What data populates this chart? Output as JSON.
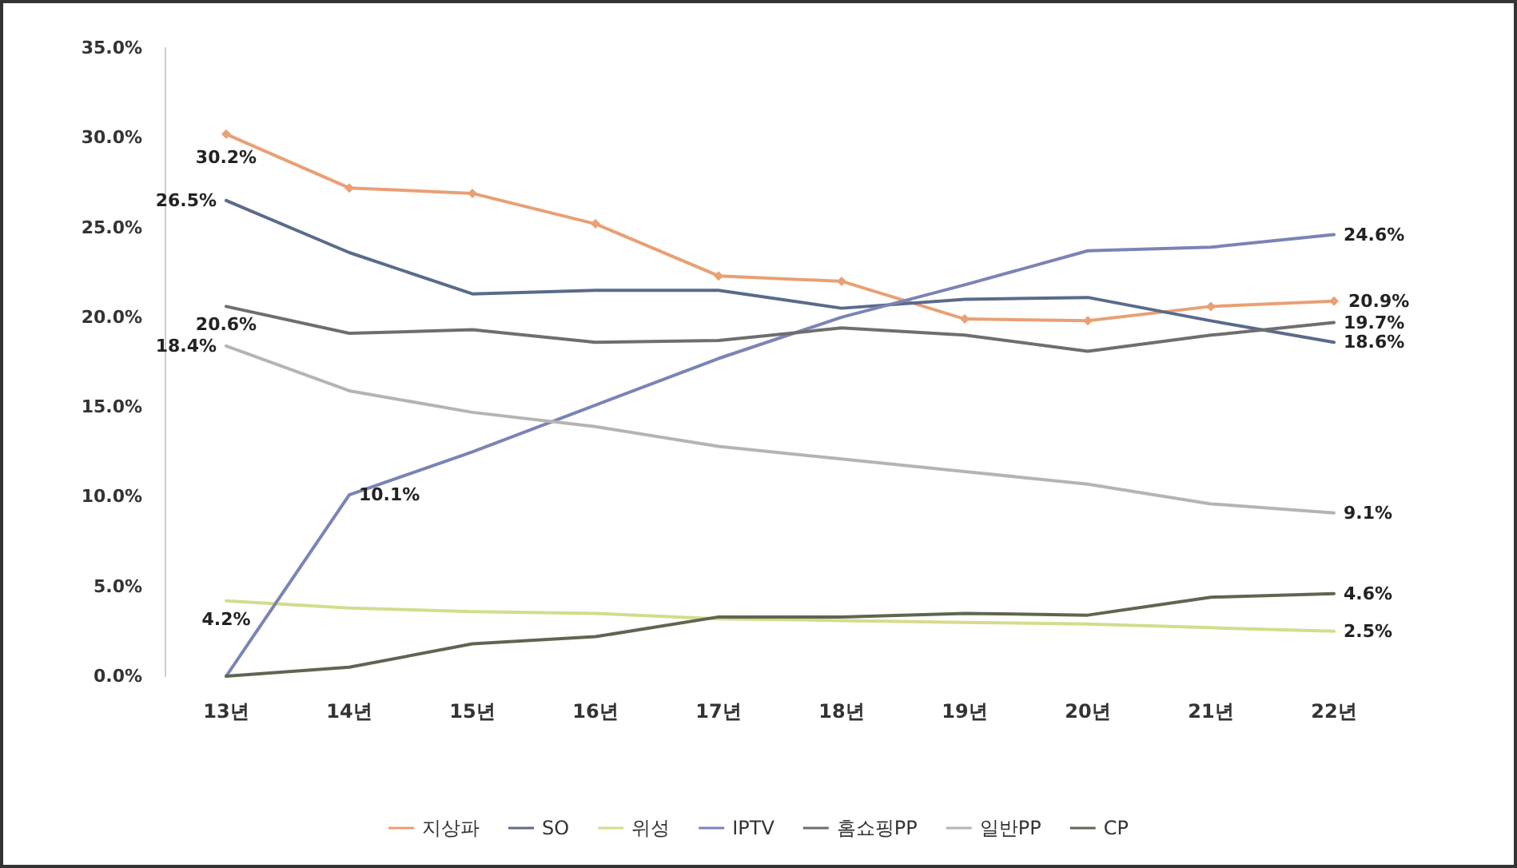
{
  "chart_data": {
    "type": "line",
    "categories": [
      "13년",
      "14년",
      "15년",
      "16년",
      "17년",
      "18년",
      "19년",
      "20년",
      "21년",
      "22년"
    ],
    "series": [
      {
        "name": "지상파",
        "color": "#e8a074",
        "marker": "diamond",
        "values": [
          30.2,
          27.2,
          26.9,
          25.2,
          22.3,
          22.0,
          19.9,
          19.8,
          20.6,
          20.9
        ],
        "value_labels": [
          "30.2%",
          null,
          null,
          null,
          null,
          null,
          null,
          null,
          null,
          "20.9%"
        ]
      },
      {
        "name": "SO",
        "color": "#5a6a8a",
        "values": [
          26.5,
          23.6,
          21.3,
          21.5,
          21.5,
          20.5,
          21.0,
          21.1,
          19.8,
          18.6
        ],
        "value_labels": [
          "26.5%",
          null,
          null,
          null,
          null,
          null,
          null,
          null,
          null,
          "18.6%"
        ]
      },
      {
        "name": "위성",
        "color": "#d4dc8c",
        "values": [
          4.2,
          3.8,
          3.6,
          3.5,
          3.2,
          3.1,
          3.0,
          2.9,
          2.7,
          2.5
        ],
        "value_labels": [
          "4.2%",
          null,
          null,
          null,
          null,
          null,
          null,
          null,
          null,
          "2.5%"
        ]
      },
      {
        "name": "IPTV",
        "color": "#7a84b4",
        "values": [
          0.0,
          10.1,
          12.5,
          15.1,
          17.7,
          20.0,
          21.8,
          23.7,
          23.9,
          24.6
        ],
        "value_labels": [
          null,
          "10.1%",
          null,
          null,
          null,
          null,
          null,
          null,
          null,
          "24.6%"
        ]
      },
      {
        "name": "홈쇼핑PP",
        "color": "#6e6e6e",
        "values": [
          20.6,
          19.1,
          19.3,
          18.6,
          18.7,
          19.4,
          19.0,
          18.1,
          19.0,
          19.7
        ],
        "value_labels": [
          "20.6%",
          null,
          null,
          null,
          null,
          null,
          null,
          null,
          null,
          "19.7%"
        ]
      },
      {
        "name": "일반PP",
        "color": "#b4b4b4",
        "values": [
          18.4,
          15.9,
          14.7,
          13.9,
          12.8,
          12.1,
          11.4,
          10.7,
          9.6,
          9.1
        ],
        "value_labels": [
          "18.4%",
          null,
          null,
          null,
          null,
          null,
          null,
          null,
          null,
          "9.1%"
        ]
      },
      {
        "name": "CP",
        "color": "#5e6650",
        "values": [
          0.0,
          0.5,
          1.8,
          2.2,
          3.3,
          3.3,
          3.5,
          3.4,
          4.4,
          4.6
        ],
        "value_labels": [
          null,
          null,
          null,
          null,
          null,
          null,
          null,
          null,
          null,
          "4.6%"
        ]
      }
    ],
    "ylim": [
      0,
      35
    ],
    "yticks": [
      {
        "value": 0,
        "label": "0.0%"
      },
      {
        "value": 5,
        "label": "5.0%"
      },
      {
        "value": 10,
        "label": "10.0%"
      },
      {
        "value": 15,
        "label": "15.0%"
      },
      {
        "value": 20,
        "label": "20.0%"
      },
      {
        "value": 25,
        "label": "25.0%"
      },
      {
        "value": 30,
        "label": "30.0%"
      },
      {
        "value": 35,
        "label": "35.0%"
      }
    ],
    "grid": false,
    "legend": "bottom",
    "marker": "none",
    "line_style": "solid"
  }
}
